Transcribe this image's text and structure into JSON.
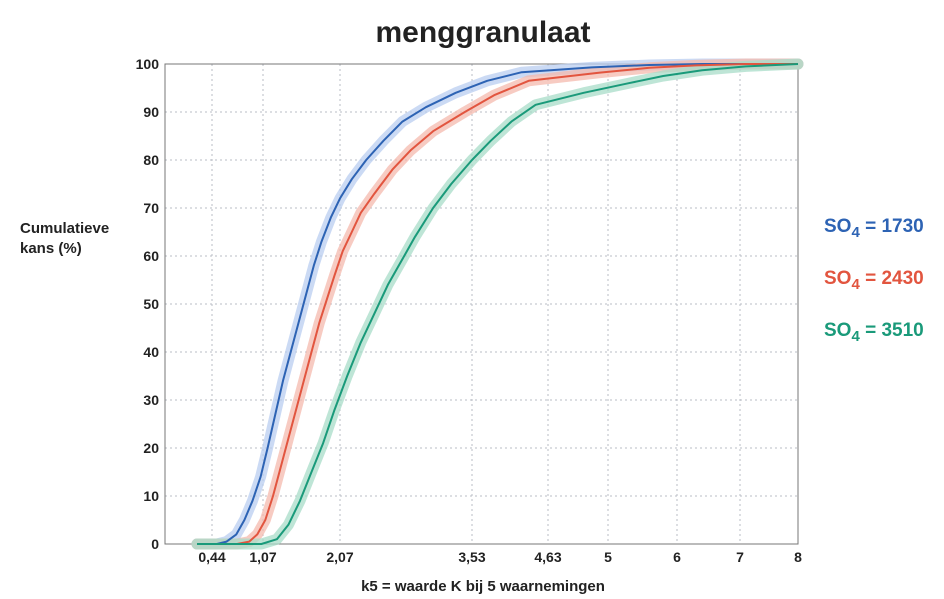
{
  "chart_data": {
    "type": "line",
    "title": "menggranulaat",
    "xlabel": "k5 = waarde K bij 5 waarnemingen",
    "ylabel_lines": [
      "Cumulatieve",
      "kans (%)"
    ],
    "x_ticks": [
      {
        "value": 0.44,
        "label": "0,44"
      },
      {
        "value": 1.07,
        "label": "1,07"
      },
      {
        "value": 2.07,
        "label": "2,07"
      },
      {
        "value": 3.53,
        "label": "3,53"
      },
      {
        "value": 4.63,
        "label": "4,63"
      },
      {
        "value": 5,
        "label": "5"
      },
      {
        "value": 6,
        "label": "6"
      },
      {
        "value": 7,
        "label": "7"
      },
      {
        "value": 8,
        "label": "8"
      }
    ],
    "y_ticks": [
      0,
      10,
      20,
      30,
      40,
      50,
      60,
      70,
      80,
      90,
      100
    ],
    "ylim": [
      0,
      100
    ],
    "grid": true,
    "legend_position": "right",
    "series": [
      {
        "name_main": "SO",
        "name_sub": "4",
        "name_value": " = 1730",
        "color": "#2d63b4",
        "band_color": "#b9cdf0",
        "x": [
          0.3,
          0.5,
          0.62,
          0.74,
          0.84,
          0.94,
          1.04,
          1.13,
          1.23,
          1.33,
          1.43,
          1.53,
          1.63,
          1.73,
          1.83,
          1.95,
          2.07,
          2.2,
          2.36,
          2.55,
          2.76,
          3.02,
          3.35,
          3.75,
          4.25,
          4.9,
          5.6,
          6.4,
          7.2,
          8.0
        ],
        "y": [
          0,
          0,
          0.5,
          2,
          5,
          9,
          14,
          20,
          27,
          34,
          40,
          46,
          52,
          58,
          63,
          68,
          72,
          76,
          80,
          84,
          88,
          91,
          94,
          96.5,
          98.3,
          99.3,
          99.8,
          100,
          100,
          100
        ]
      },
      {
        "name_main": "SO",
        "name_sub": "4",
        "name_value": " = 2430",
        "color": "#e2553f",
        "band_color": "#f4b9ad",
        "x": [
          0.3,
          0.75,
          0.9,
          1.0,
          1.1,
          1.2,
          1.3,
          1.4,
          1.5,
          1.6,
          1.7,
          1.8,
          1.9,
          2.0,
          2.1,
          2.2,
          2.3,
          2.45,
          2.65,
          2.85,
          3.1,
          3.45,
          3.85,
          4.35,
          4.95,
          5.6,
          6.3,
          7.1,
          8.0
        ],
        "y": [
          0,
          0,
          0.5,
          2,
          5,
          10,
          16,
          22,
          28,
          34,
          40,
          46,
          51,
          56,
          61,
          65,
          69,
          73,
          78,
          82,
          86,
          90,
          93.5,
          96.5,
          98.2,
          99.2,
          99.7,
          100,
          100
        ]
      },
      {
        "name_main": "SO",
        "name_sub": "4",
        "name_value": " = 3510",
        "color": "#1a9a7a",
        "band_color": "#a8dcc8",
        "x": [
          0.3,
          1.05,
          1.25,
          1.4,
          1.55,
          1.7,
          1.85,
          2.0,
          2.15,
          2.3,
          2.45,
          2.6,
          2.75,
          2.9,
          3.1,
          3.3,
          3.53,
          3.8,
          4.1,
          4.45,
          4.85,
          5.3,
          5.8,
          6.4,
          7.1,
          8.0
        ],
        "y": [
          0,
          0,
          1,
          4,
          9,
          15,
          21,
          28,
          35,
          42,
          48,
          54,
          59,
          64,
          70,
          75,
          80,
          84,
          88,
          91.5,
          94,
          96,
          97.5,
          98.7,
          99.5,
          100
        ]
      }
    ]
  }
}
